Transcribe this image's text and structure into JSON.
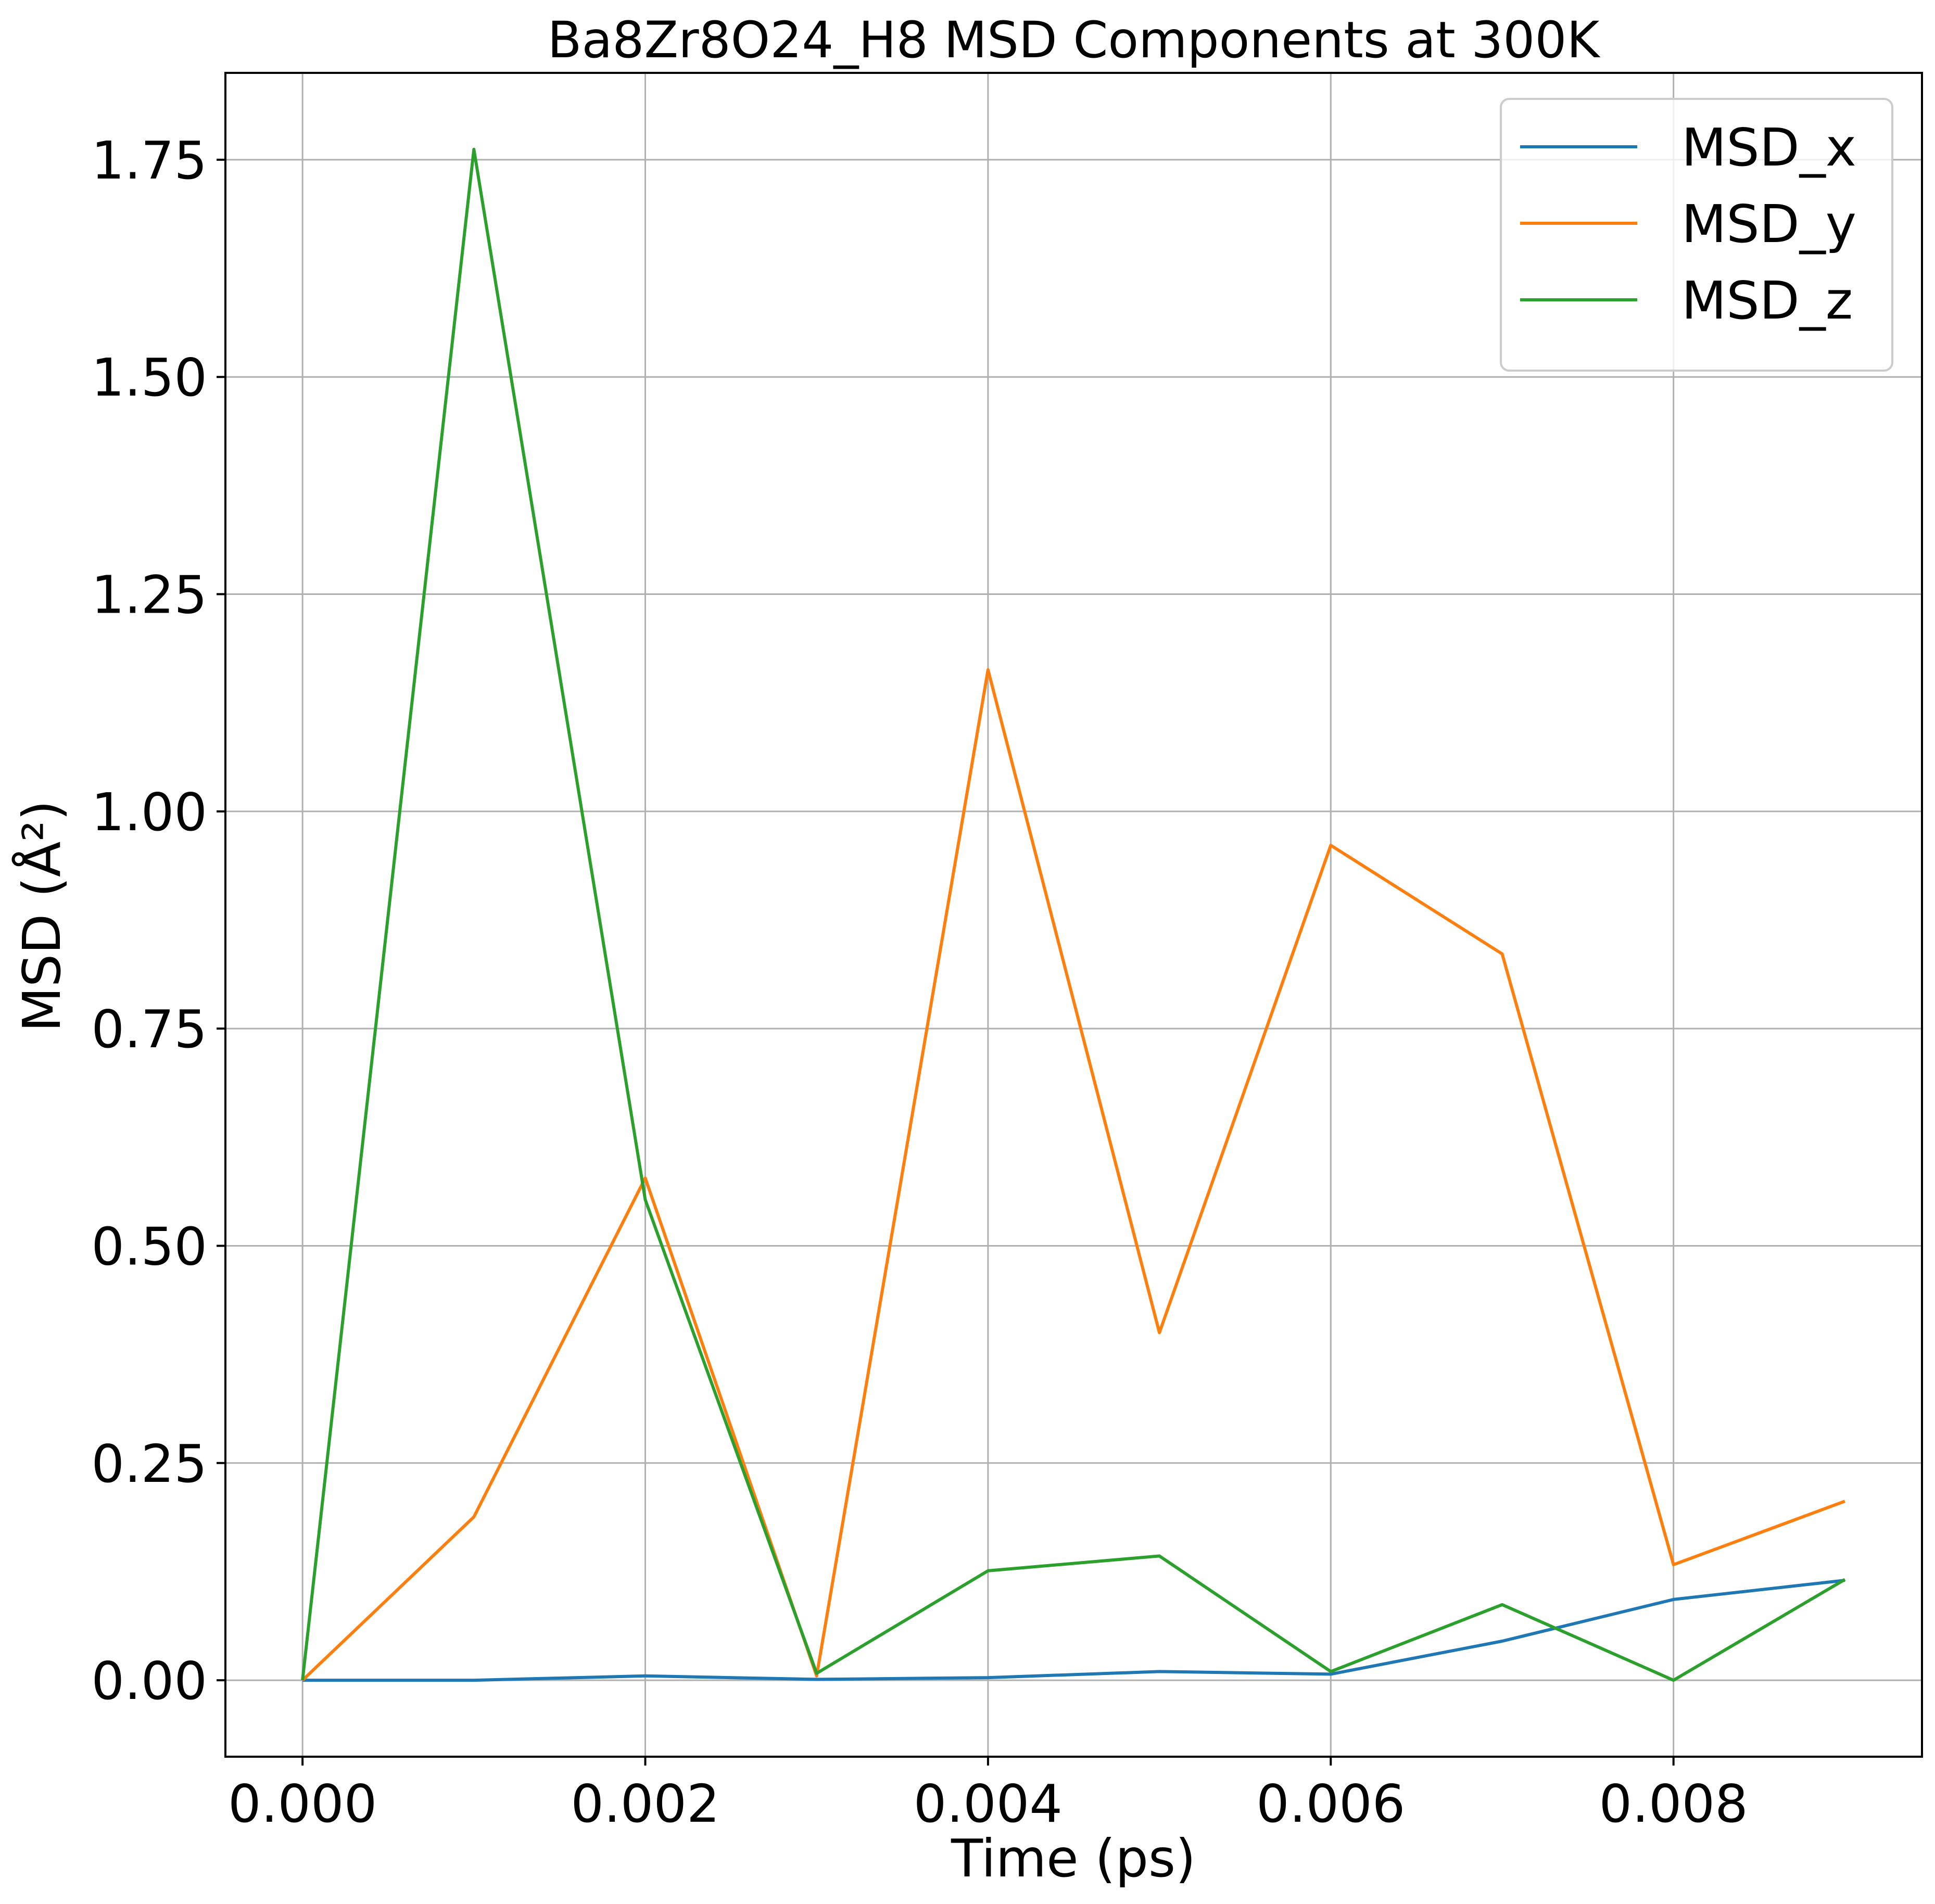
{
  "chart_data": {
    "type": "line",
    "title": "Ba8Zr8O24_H8 MSD Components at 300K",
    "xlabel": "Time (ps)",
    "ylabel": "MSD (Å²)",
    "x": [
      0.0,
      0.001,
      0.002,
      0.003,
      0.004,
      0.005,
      0.006,
      0.007,
      0.008,
      0.009
    ],
    "xlim": [
      -0.00045,
      0.00945
    ],
    "ylim": [
      -0.088,
      1.85
    ],
    "xticks": [
      0.0,
      0.002,
      0.004,
      0.006,
      0.008
    ],
    "xtick_labels": [
      "0.000",
      "0.002",
      "0.004",
      "0.006",
      "0.008"
    ],
    "yticks": [
      0.0,
      0.25,
      0.5,
      0.75,
      1.0,
      1.25,
      1.5,
      1.75
    ],
    "ytick_labels": [
      "0.00",
      "0.25",
      "0.50",
      "0.75",
      "1.00",
      "1.25",
      "1.50",
      "1.75"
    ],
    "grid": true,
    "legend_position": "top-right",
    "series": [
      {
        "name": "MSD_x",
        "color": "#1f77b4",
        "values": [
          0.0,
          0.0,
          0.005,
          0.001,
          0.003,
          0.01,
          0.007,
          0.045,
          0.093,
          0.115
        ]
      },
      {
        "name": "MSD_y",
        "color": "#ff7f0e",
        "values": [
          0.0,
          0.188,
          0.578,
          0.005,
          1.163,
          0.4,
          0.961,
          0.836,
          0.133,
          0.206
        ]
      },
      {
        "name": "MSD_z",
        "color": "#2ca02c",
        "values": [
          0.0,
          1.762,
          0.553,
          0.008,
          0.126,
          0.143,
          0.01,
          0.087,
          0.0,
          0.116
        ]
      }
    ]
  }
}
